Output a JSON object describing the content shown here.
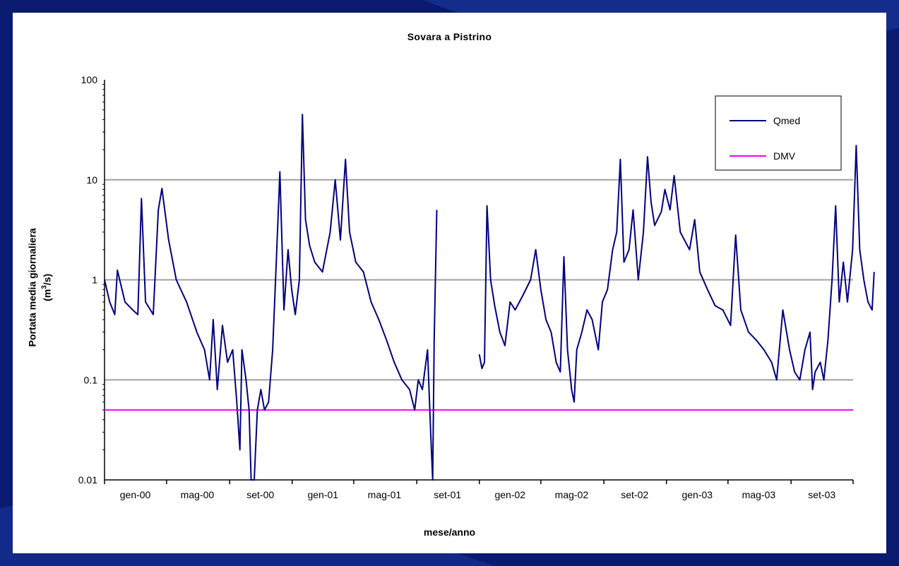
{
  "chart_data": {
    "type": "line",
    "title": "Sovara a Pistrino",
    "xlabel": "mese/anno",
    "ylabel_line1": "Portata media giornaliera",
    "ylabel_line2_pre": "(m",
    "ylabel_line2_sup": "3",
    "ylabel_line2_post": "/s)",
    "yscale": "log",
    "ylim": [
      0.01,
      100
    ],
    "grid": true,
    "legend_position": "top-right",
    "y_ticks": [
      "100",
      "10",
      "1",
      "0.1",
      "0.01"
    ],
    "x_ticks": [
      "gen-00",
      "mag-00",
      "set-00",
      "gen-01",
      "mag-01",
      "set-01",
      "gen-02",
      "mag-02",
      "set-02",
      "gen-03",
      "mag-03",
      "set-03"
    ],
    "colors": {
      "Qmed": "#000080",
      "DMV": "#ff00ff",
      "grid": "#a0a0a0"
    },
    "series": [
      {
        "name": "Qmed",
        "segments": [
          [
            [
              "gen-00",
              1.0
            ],
            [
              "gen-00+10",
              0.6
            ],
            [
              "gen-00+20",
              0.45
            ],
            [
              "gen-00+25",
              1.25
            ],
            [
              "gen-00+40",
              0.6
            ],
            [
              "gen-00+55",
              0.5
            ],
            [
              "gen-00+65",
              0.45
            ],
            [
              "gen-00+72",
              6.5
            ],
            [
              "gen-00+80",
              0.6
            ],
            [
              "gen-00+95",
              0.45
            ],
            [
              "gen-00+105",
              5.0
            ],
            [
              "gen-00+112",
              8.2
            ],
            [
              "gen-00+125",
              2.5
            ],
            [
              "gen-00+140",
              1.0
            ],
            [
              "gen-00+160",
              0.6
            ],
            [
              "gen-00+180",
              0.3
            ],
            [
              "gen-00+195",
              0.2
            ],
            [
              "gen-00+205",
              0.1
            ],
            [
              "gen-00+212",
              0.4
            ],
            [
              "gen-00+220",
              0.08
            ],
            [
              "gen-00+230",
              0.35
            ],
            [
              "gen-00+240",
              0.15
            ],
            [
              "gen-00+250",
              0.2
            ],
            [
              "gen-00+258",
              0.06
            ],
            [
              "gen-00+264",
              0.02
            ],
            [
              "gen-00+268",
              0.2
            ],
            [
              "gen-00+276",
              0.1
            ],
            [
              "gen-00+282",
              0.05
            ],
            [
              "gen-00+286",
              0.01
            ],
            [
              "gen-00+292",
              0.01
            ],
            [
              "gen-00+298",
              0.05
            ],
            [
              "gen-00+305",
              0.08
            ],
            [
              "gen-00+312",
              0.05
            ],
            [
              "gen-00+320",
              0.06
            ],
            [
              "gen-00+328",
              0.2
            ],
            [
              "gen-00+335",
              1.5
            ],
            [
              "gen-00+342",
              12.0
            ],
            [
              "gen-00+350",
              0.5
            ],
            [
              "gen-00+358",
              2.0
            ],
            [
              "gen-00+365",
              0.8
            ],
            [
              "gen-00+372",
              0.45
            ],
            [
              "gen-00+380",
              1.0
            ],
            [
              "gen-00+386",
              45.0
            ],
            [
              "gen-00+392",
              4.0
            ],
            [
              "gen-00+400",
              2.2
            ],
            [
              "gen-00+410",
              1.5
            ],
            [
              "gen-00+425",
              1.2
            ],
            [
              "gen-00+440",
              3.0
            ],
            [
              "gen-00+450",
              10.0
            ],
            [
              "gen-00+460",
              2.5
            ],
            [
              "gen-00+470",
              16.0
            ],
            [
              "gen-00+478",
              3.0
            ],
            [
              "gen-00+490",
              1.5
            ],
            [
              "gen-00+505",
              1.2
            ],
            [
              "gen-00+520",
              0.6
            ],
            [
              "gen-00+535",
              0.4
            ],
            [
              "gen-00+550",
              0.25
            ],
            [
              "gen-00+565",
              0.15
            ],
            [
              "gen-00+580",
              0.1
            ],
            [
              "gen-00+595",
              0.08
            ],
            [
              "gen-00+605",
              0.05
            ],
            [
              "gen-00+612",
              0.1
            ],
            [
              "gen-00+620",
              0.08
            ],
            [
              "gen-00+630",
              0.2
            ],
            [
              "gen-00+636",
              0.03
            ],
            [
              "gen-00+640",
              0.01
            ],
            [
              "gen-00+643",
              0.25
            ],
            [
              "gen-00+648",
              5.0
            ]
          ],
          [
            [
              "gen-02",
              0.18
            ],
            [
              "gen-02+5",
              0.13
            ],
            [
              "gen-02+10",
              0.15
            ],
            [
              "gen-02+15",
              5.5
            ],
            [
              "gen-02+22",
              1.0
            ],
            [
              "gen-02+30",
              0.55
            ],
            [
              "gen-02+40",
              0.3
            ],
            [
              "gen-02+50",
              0.22
            ],
            [
              "gen-02+60",
              0.6
            ],
            [
              "gen-02+70",
              0.5
            ],
            [
              "gen-02+85",
              0.7
            ],
            [
              "gen-02+100",
              1.0
            ],
            [
              "gen-02+110",
              2.0
            ],
            [
              "gen-02+120",
              0.8
            ],
            [
              "gen-02+130",
              0.4
            ],
            [
              "gen-02+140",
              0.3
            ],
            [
              "gen-02+150",
              0.15
            ],
            [
              "gen-02+158",
              0.12
            ],
            [
              "gen-02+165",
              1.7
            ],
            [
              "gen-02+172",
              0.2
            ],
            [
              "gen-02+180",
              0.08
            ],
            [
              "gen-02+185",
              0.06
            ],
            [
              "gen-02+190",
              0.2
            ],
            [
              "gen-02+200",
              0.3
            ],
            [
              "gen-02+210",
              0.5
            ],
            [
              "gen-02+220",
              0.4
            ],
            [
              "gen-02+232",
              0.2
            ],
            [
              "gen-02+240",
              0.6
            ],
            [
              "gen-02+250",
              0.8
            ],
            [
              "gen-02+260",
              2.0
            ],
            [
              "gen-02+268",
              3.0
            ],
            [
              "gen-02+275",
              16.0
            ],
            [
              "gen-02+282",
              1.5
            ],
            [
              "gen-02+292",
              2.0
            ],
            [
              "gen-02+300",
              5.0
            ],
            [
              "gen-02+310",
              1.0
            ],
            [
              "gen-02+320",
              3.0
            ],
            [
              "gen-02+328",
              17.0
            ],
            [
              "gen-02+335",
              6.0
            ],
            [
              "gen-02+342",
              3.5
            ],
            [
              "gen-02+355",
              4.8
            ],
            [
              "gen-02+362",
              8.0
            ],
            [
              "gen-02+372",
              5.0
            ],
            [
              "gen-02+380",
              11.0
            ],
            [
              "gen-02+392",
              3.0
            ],
            [
              "gen-02+410",
              2.0
            ],
            [
              "gen-02+420",
              4.0
            ],
            [
              "gen-02+430",
              1.2
            ],
            [
              "gen-02+445",
              0.8
            ],
            [
              "gen-02+460",
              0.55
            ],
            [
              "gen-02+475",
              0.5
            ],
            [
              "gen-02+490",
              0.35
            ],
            [
              "gen-02+500",
              2.8
            ],
            [
              "gen-02+510",
              0.5
            ],
            [
              "gen-02+525",
              0.3
            ],
            [
              "gen-02+540",
              0.25
            ],
            [
              "gen-02+555",
              0.2
            ],
            [
              "gen-02+570",
              0.15
            ],
            [
              "gen-02+580",
              0.1
            ],
            [
              "gen-02+592",
              0.5
            ],
            [
              "gen-02+605",
              0.2
            ],
            [
              "gen-02+615",
              0.12
            ],
            [
              "gen-02+625",
              0.1
            ],
            [
              "gen-02+635",
              0.2
            ],
            [
              "gen-02+645",
              0.3
            ],
            [
              "gen-02+650",
              0.08
            ],
            [
              "gen-02+655",
              0.12
            ],
            [
              "gen-02+665",
              0.15
            ],
            [
              "gen-02+672",
              0.1
            ],
            [
              "gen-02+680",
              0.25
            ],
            [
              "gen-02+688",
              1.0
            ],
            [
              "gen-02+695",
              5.5
            ],
            [
              "gen-02+702",
              0.6
            ],
            [
              "gen-02+710",
              1.5
            ],
            [
              "gen-02+718",
              0.6
            ],
            [
              "gen-02+728",
              2.0
            ],
            [
              "gen-02+735",
              22.0
            ],
            [
              "gen-02+742",
              2.0
            ],
            [
              "gen-02+750",
              1.0
            ],
            [
              "gen-02+758",
              0.6
            ],
            [
              "gen-02+766",
              0.5
            ],
            [
              "gen-02+770",
              1.2
            ]
          ]
        ]
      },
      {
        "name": "DMV",
        "y": 0.05
      }
    ]
  }
}
